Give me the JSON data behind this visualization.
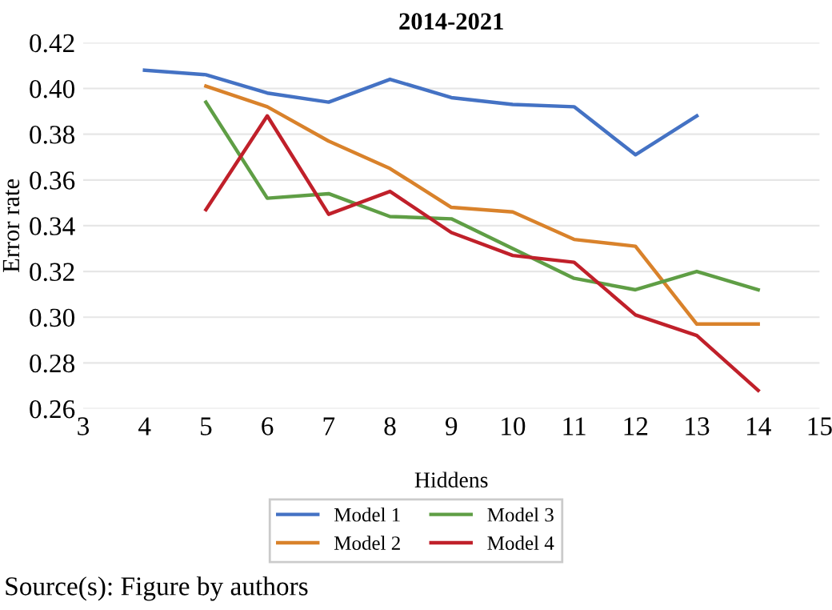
{
  "chart_data": {
    "type": "line",
    "title": "2014-2021",
    "xlabel": "Hiddens",
    "ylabel": "Error rate",
    "x": [
      4,
      5,
      6,
      7,
      8,
      9,
      10,
      11,
      12,
      13,
      14
    ],
    "series": [
      {
        "name": "Model 1",
        "color": "#4472c4",
        "values": [
          0.408,
          0.406,
          0.398,
          0.394,
          0.404,
          0.396,
          0.393,
          0.392,
          0.371,
          0.388,
          null
        ]
      },
      {
        "name": "Model 2",
        "color": "#d9822b",
        "values": [
          null,
          0.401,
          0.392,
          0.377,
          0.365,
          0.348,
          0.346,
          0.334,
          0.331,
          0.297,
          0.297
        ]
      },
      {
        "name": "Model 3",
        "color": "#5f9e45",
        "values": [
          null,
          0.394,
          0.352,
          0.354,
          0.344,
          0.343,
          0.33,
          0.317,
          0.312,
          0.32,
          0.312
        ]
      },
      {
        "name": "Model 4",
        "color": "#c0202a",
        "values": [
          null,
          0.347,
          0.388,
          0.345,
          0.355,
          0.337,
          0.327,
          0.324,
          0.301,
          0.292,
          0.268
        ]
      }
    ],
    "xlim": [
      3,
      15
    ],
    "xticks": [
      3,
      4,
      5,
      6,
      7,
      8,
      9,
      10,
      11,
      12,
      13,
      14,
      15
    ],
    "ylim": [
      0.26,
      0.42
    ],
    "yticks": [
      {
        "value": 0.26,
        "label": "0.26"
      },
      {
        "value": 0.28,
        "label": "0.28"
      },
      {
        "value": 0.3,
        "label": "0.30"
      },
      {
        "value": 0.32,
        "label": "0.32"
      },
      {
        "value": 0.34,
        "label": "0.34"
      },
      {
        "value": 0.36,
        "label": "0.36"
      },
      {
        "value": 0.38,
        "label": "0.38"
      },
      {
        "value": 0.4,
        "label": "0.40"
      },
      {
        "value": 0.42,
        "label": "0.42"
      }
    ],
    "grid": "y",
    "legend": "bottom",
    "marker": "none",
    "line_style": "solid",
    "annotations": [
      "Source(s): Figure by authors"
    ]
  }
}
